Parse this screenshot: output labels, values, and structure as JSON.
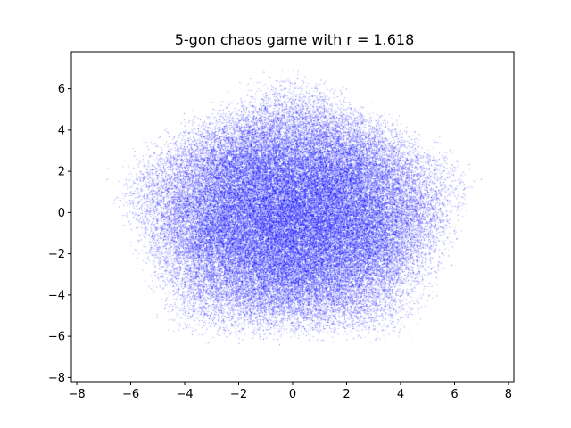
{
  "chart_data": {
    "type": "scatter",
    "title": "5-gon chaos game with r = 1.618",
    "xlabel": "",
    "ylabel": "",
    "xlim": [
      -8.2,
      8.2
    ],
    "ylim": [
      -8.2,
      7.8
    ],
    "x_ticks": [
      -8,
      -6,
      -4,
      -2,
      0,
      2,
      4,
      6,
      8
    ],
    "x_tick_labels": [
      "−8",
      "−6",
      "−4",
      "−2",
      "0",
      "2",
      "4",
      "6",
      "8"
    ],
    "y_ticks": [
      -8,
      -6,
      -4,
      -2,
      0,
      2,
      4,
      6
    ],
    "y_tick_labels": [
      "−8",
      "−6",
      "−4",
      "−2",
      "0",
      "2",
      "4",
      "6"
    ],
    "grid": false,
    "legend": "none",
    "marker_color": "#0000ff",
    "polygon_sides": 5,
    "ratio": 1.618,
    "approx_extent": {
      "x": [
        -7.2,
        7.2
      ],
      "y": [
        -7.3,
        7.0
      ]
    }
  }
}
